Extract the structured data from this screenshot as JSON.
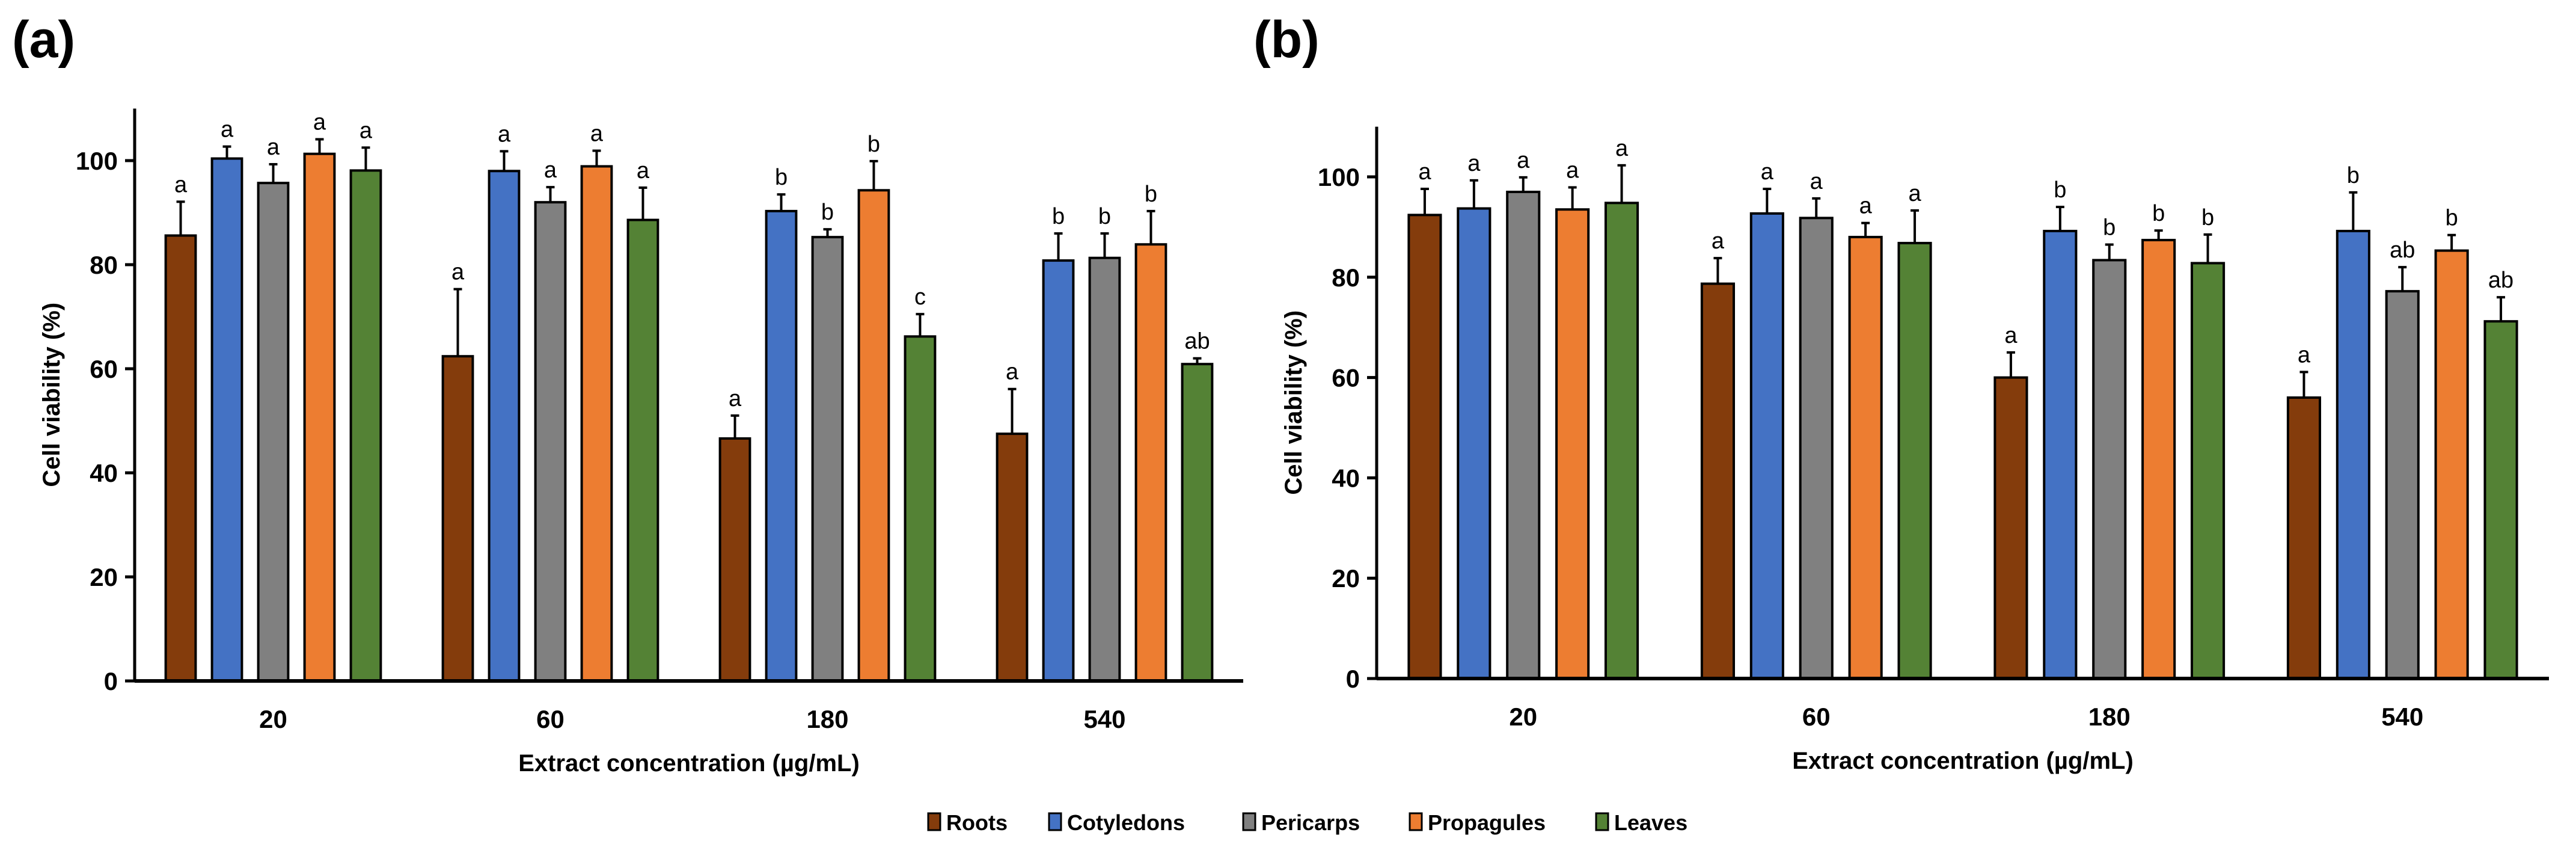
{
  "legend": [
    "Roots",
    "Cotyledons",
    "Pericarps",
    "Propagules",
    "Leaves"
  ],
  "colors": {
    "Roots": "#843C0C",
    "Cotyledons": "#4472C4",
    "Pericarps": "#808080",
    "Propagules": "#ED7D31",
    "Leaves": "#548235"
  },
  "chart_data": [
    {
      "type": "bar",
      "panel_label": "(a)",
      "xlabel": "Extract concentration (µg/mL)",
      "ylabel": "Cell viability (%)",
      "ylim": [
        0,
        110
      ],
      "yticks": [
        0,
        20,
        40,
        60,
        80,
        100
      ],
      "categories": [
        "20",
        "60",
        "180",
        "540"
      ],
      "series": [
        {
          "name": "Roots",
          "values": [
            85.6,
            62.4,
            46.6,
            47.5
          ],
          "errors": [
            6.5,
            12.9,
            4.4,
            8.6
          ],
          "letters": [
            "a",
            "a",
            "a",
            "a"
          ]
        },
        {
          "name": "Cotyledons",
          "values": [
            100.4,
            98.0,
            90.3,
            80.8
          ],
          "errors": [
            2.3,
            3.8,
            3.2,
            5.2
          ],
          "letters": [
            "a",
            "a",
            "b",
            "b"
          ]
        },
        {
          "name": "Pericarps",
          "values": [
            95.7,
            92.0,
            85.3,
            81.3
          ],
          "errors": [
            3.6,
            2.9,
            1.5,
            4.7
          ],
          "letters": [
            "a",
            "a",
            "b",
            "b"
          ]
        },
        {
          "name": "Propagules",
          "values": [
            101.3,
            98.9,
            94.3,
            83.9
          ],
          "errors": [
            2.8,
            3.0,
            5.6,
            6.4
          ],
          "letters": [
            "a",
            "a",
            "b",
            "b"
          ]
        },
        {
          "name": "Leaves",
          "values": [
            98.1,
            88.6,
            66.2,
            60.9
          ],
          "errors": [
            4.4,
            6.2,
            4.3,
            1.1
          ],
          "letters": [
            "a",
            "a",
            "c",
            "ab"
          ]
        }
      ]
    },
    {
      "type": "bar",
      "panel_label": "(b)",
      "xlabel": "Extract concentration (µg/mL)",
      "ylabel": "Cell viability (%)",
      "ylim": [
        0,
        110
      ],
      "yticks": [
        0,
        20,
        40,
        60,
        80,
        100
      ],
      "categories": [
        "20",
        "60",
        "180",
        "540"
      ],
      "series": [
        {
          "name": "Roots",
          "values": [
            92.4,
            78.7,
            60.0,
            56.0
          ],
          "errors": [
            5.2,
            5.1,
            5.0,
            5.1
          ],
          "letters": [
            "a",
            "a",
            "a",
            "a"
          ]
        },
        {
          "name": "Cotyledons",
          "values": [
            93.7,
            92.7,
            89.2,
            89.2
          ],
          "errors": [
            5.6,
            4.9,
            4.8,
            7.7
          ],
          "letters": [
            "a",
            "a",
            "b",
            "b"
          ]
        },
        {
          "name": "Pericarps",
          "values": [
            97.0,
            91.8,
            83.4,
            77.2
          ],
          "errors": [
            2.9,
            3.9,
            3.1,
            4.8
          ],
          "letters": [
            "a",
            "a",
            "b",
            "ab"
          ]
        },
        {
          "name": "Propagules",
          "values": [
            93.5,
            88.0,
            87.4,
            85.3
          ],
          "errors": [
            4.4,
            2.8,
            1.9,
            3.1
          ],
          "letters": [
            "a",
            "a",
            "b",
            "b"
          ]
        },
        {
          "name": "Leaves",
          "values": [
            94.8,
            86.8,
            82.8,
            71.2
          ],
          "errors": [
            7.5,
            6.5,
            5.7,
            4.8
          ],
          "letters": [
            "a",
            "a",
            "b",
            "ab"
          ]
        }
      ]
    }
  ]
}
